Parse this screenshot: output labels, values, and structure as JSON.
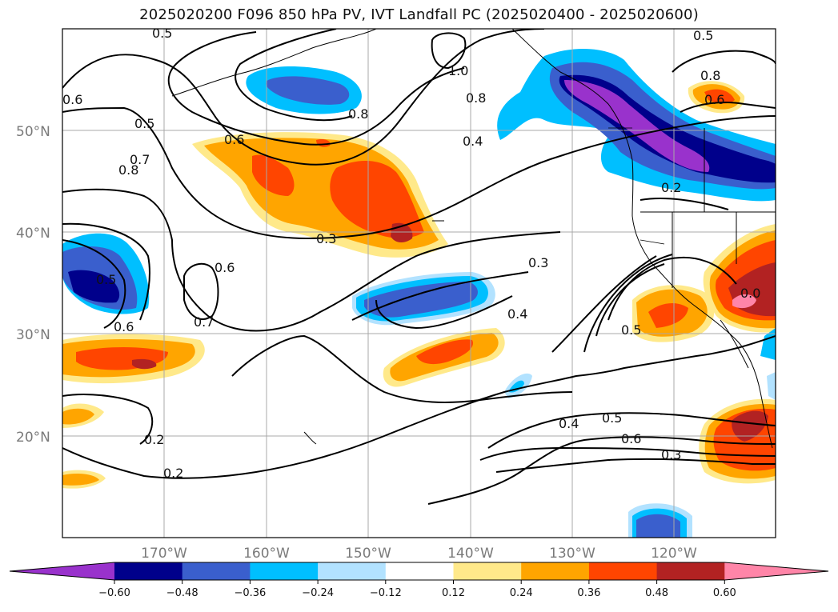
{
  "title": "2025020200 F096 850 hPa PV, IVT Landfall PC (2025020400 - 2025020600)",
  "map": {
    "lat_labels": [
      "50°N",
      "40°N",
      "30°N",
      "20°N"
    ],
    "lon_labels": [
      "170°W",
      "160°W",
      "150°W",
      "140°W",
      "130°W",
      "120°W"
    ]
  },
  "contour_labels": [
    {
      "id": "c1",
      "text": "0.5"
    },
    {
      "id": "c2",
      "text": "0.5"
    },
    {
      "id": "c3",
      "text": "1.0"
    },
    {
      "id": "c4",
      "text": "0.8"
    },
    {
      "id": "c5",
      "text": "0.8"
    },
    {
      "id": "c6",
      "text": "0.8"
    },
    {
      "id": "c7",
      "text": "0.6"
    },
    {
      "id": "c8",
      "text": "0.5"
    },
    {
      "id": "c9",
      "text": "0.7"
    },
    {
      "id": "c10",
      "text": "0.8"
    },
    {
      "id": "c11",
      "text": "0.6"
    },
    {
      "id": "c12",
      "text": "0.4"
    },
    {
      "id": "c13",
      "text": "0.6"
    },
    {
      "id": "c14",
      "text": "0.2"
    },
    {
      "id": "c15",
      "text": "0.3"
    },
    {
      "id": "c16",
      "text": "0.6"
    },
    {
      "id": "c17",
      "text": "0.3"
    },
    {
      "id": "c18",
      "text": "0.5"
    },
    {
      "id": "c19",
      "text": "0.4"
    },
    {
      "id": "c20",
      "text": "0.7"
    },
    {
      "id": "c21",
      "text": "0.6"
    },
    {
      "id": "c22",
      "text": "0.5"
    },
    {
      "id": "c23",
      "text": "0.4"
    },
    {
      "id": "c24",
      "text": "0.5"
    },
    {
      "id": "c25",
      "text": "0.6"
    },
    {
      "id": "c26",
      "text": "0.3"
    },
    {
      "id": "c27",
      "text": "0.2"
    },
    {
      "id": "c28",
      "text": "0.2"
    },
    {
      "id": "c29",
      "text": "0.0"
    }
  ],
  "colorbar": {
    "ticks": [
      "−0.60",
      "−0.48",
      "−0.36",
      "−0.24",
      "−0.12",
      "0.12",
      "0.24",
      "0.36",
      "0.48",
      "0.60"
    ],
    "colors": [
      "#9932cc",
      "#00008b",
      "#3a5fcd",
      "#00bfff",
      "#b2e2ff",
      "#ffffff",
      "#ffe98a",
      "#ffa500",
      "#ff4500",
      "#b22222",
      "#ff85a8"
    ]
  }
}
